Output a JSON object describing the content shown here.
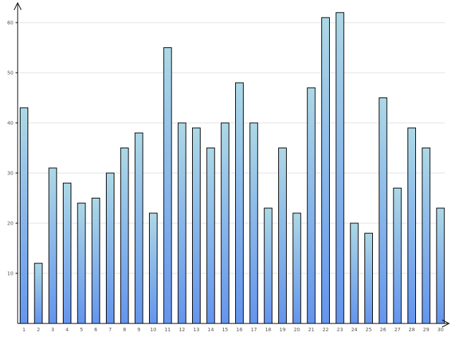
{
  "chart_data": {
    "type": "bar",
    "title": "",
    "xlabel": "",
    "ylabel": "",
    "categories": [
      "1",
      "2",
      "3",
      "4",
      "5",
      "6",
      "7",
      "8",
      "9",
      "10",
      "11",
      "12",
      "13",
      "14",
      "15",
      "16",
      "17",
      "18",
      "19",
      "20",
      "21",
      "22",
      "23",
      "24",
      "25",
      "26",
      "27",
      "28",
      "29",
      "30"
    ],
    "values": [
      43,
      12,
      31,
      28,
      24,
      25,
      30,
      35,
      38,
      22,
      55,
      40,
      39,
      35,
      40,
      48,
      40,
      23,
      35,
      22,
      47,
      61,
      62,
      20,
      18,
      45,
      27,
      39,
      35,
      23
    ],
    "ylim": [
      0,
      65
    ],
    "yticks": [
      10,
      20,
      30,
      40,
      50,
      60
    ],
    "grid": true,
    "legend": "none",
    "colors": {
      "bar_top": "#add8e6",
      "bar_bottom": "#6495ed",
      "bar_outline": "#000000",
      "grid": "#e0e0e0",
      "axis": "#000000"
    }
  }
}
